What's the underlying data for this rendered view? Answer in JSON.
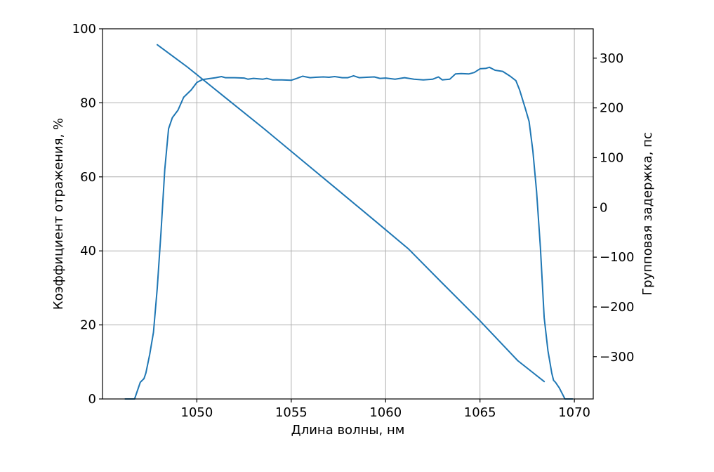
{
  "chart_data": {
    "type": "line",
    "title": "",
    "xlabel": "Длина волны, нм",
    "ylabel": "Коэффициент отражения, %",
    "y2label": "Групповая задержка, пс",
    "xlim": [
      1045,
      1071
    ],
    "ylim": [
      0,
      100
    ],
    "y2lim": [
      -385,
      359
    ],
    "xticks": [
      1050,
      1055,
      1060,
      1065,
      1070
    ],
    "yticks": [
      0,
      20,
      40,
      60,
      80,
      100
    ],
    "y2ticks": [
      -300,
      -200,
      -100,
      0,
      100,
      200,
      300
    ],
    "y2tick_labels": [
      "−300",
      "−200",
      "−100",
      "0",
      "100",
      "200",
      "300"
    ],
    "grid": true,
    "line_color": "#1f77b4",
    "series": [
      {
        "axis": "left",
        "x": [
          1046.2,
          1046.7,
          1047.0,
          1047.2,
          1047.3,
          1047.4,
          1047.5,
          1047.7,
          1047.9,
          1048.1,
          1048.3,
          1048.5,
          1048.7,
          1049.0,
          1049.3,
          1049.7,
          1050.0,
          1050.3,
          1050.6,
          1051.0,
          1051.3,
          1051.5,
          1052.0,
          1052.5,
          1052.7,
          1053.0,
          1053.5,
          1053.7,
          1054.0,
          1054.5,
          1055.0,
          1055.3,
          1055.6,
          1056.0,
          1056.3,
          1056.7,
          1057.0,
          1057.3,
          1057.7,
          1058.0,
          1058.3,
          1058.6,
          1059.0,
          1059.4,
          1059.7,
          1060.0,
          1060.5,
          1061.0,
          1061.5,
          1062.0,
          1062.5,
          1062.8,
          1063.0,
          1063.4,
          1063.7,
          1064.0,
          1064.4,
          1064.7,
          1065.0,
          1065.3,
          1065.5,
          1065.8,
          1066.2,
          1066.6,
          1066.9,
          1067.1,
          1067.4,
          1067.6,
          1067.8,
          1068.0,
          1068.2,
          1068.4,
          1068.6,
          1068.8,
          1068.9,
          1069.0,
          1069.2,
          1069.5,
          1069.9
        ],
        "y": [
          0,
          0,
          4.5,
          5.5,
          7,
          9.5,
          12,
          18,
          30,
          45,
          62,
          73,
          76,
          78,
          81.5,
          83.5,
          85.5,
          86.3,
          86.5,
          86.8,
          87.1,
          86.8,
          86.8,
          86.7,
          86.4,
          86.6,
          86.4,
          86.6,
          86.2,
          86.2,
          86.1,
          86.6,
          87.2,
          86.8,
          86.9,
          87.0,
          86.9,
          87.1,
          86.8,
          86.8,
          87.3,
          86.8,
          86.9,
          87.0,
          86.6,
          86.7,
          86.4,
          86.8,
          86.4,
          86.2,
          86.4,
          87.0,
          86.2,
          86.4,
          87.8,
          87.9,
          87.8,
          88.2,
          89.2,
          89.3,
          89.6,
          88.8,
          88.5,
          87.2,
          86.0,
          83.5,
          78.5,
          75,
          67,
          56,
          41,
          22,
          13,
          7,
          5,
          4.5,
          3,
          0,
          0
        ]
      },
      {
        "axis": "right",
        "x": [
          1047.9,
          1049.5,
          1051.5,
          1053.5,
          1055.5,
          1057.5,
          1059.5,
          1061.2,
          1063.0,
          1065.0,
          1067.0,
          1068.4
        ],
        "y": [
          327,
          282,
          221,
          160,
          97,
          34,
          -29,
          -83,
          -152,
          -228,
          -308,
          -350
        ]
      }
    ]
  }
}
